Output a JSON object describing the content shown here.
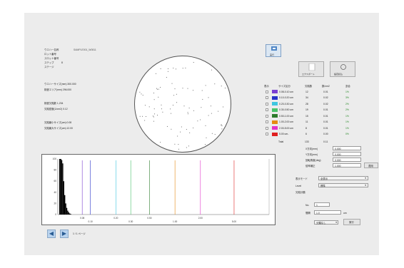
{
  "wafer_info": {
    "label_1": "ウエハー名称",
    "value_1": "SAMPLE001_W0811",
    "label_2": "ロット番号",
    "label_3": "スロット番号",
    "label_4": "ステップ",
    "value_4": "8",
    "label_5": "ステージ",
    "line_6": "ウエハーサイズ(mm) 300.000",
    "line_7": "検査エリア(mm) 296.000",
    "line_8": "検査欠陥数 1,234",
    "line_9": "欠陥密度(1/cm2) 0.12",
    "line_10": "欠陥最小サイズ(um) 0.08",
    "line_11": "欠陥最大サイズ(um) 12.00"
  },
  "toolbar": {
    "run_label": "実行",
    "export_label": "エクスポート",
    "settings_label": "設定読込"
  },
  "size_table": {
    "headers": [
      "表示",
      "サイズ区分",
      "欠陥数",
      "数/cm2",
      "割合"
    ],
    "rows": [
      {
        "range": "0.08-0.10 um",
        "count": "12",
        "density": "0.01",
        "pct": "1%",
        "color": "#7a3fd1"
      },
      {
        "range": "0.10-0.20 um",
        "count": "34",
        "density": "0.02",
        "pct": "3%",
        "color": "#2832c8"
      },
      {
        "range": "0.20-0.30 um",
        "count": "28",
        "density": "0.02",
        "pct": "2%",
        "color": "#3ec6e0"
      },
      {
        "range": "0.30-0.50 um",
        "count": "19",
        "density": "0.01",
        "pct": "2%",
        "color": "#49c36a"
      },
      {
        "range": "0.50-1.00 um",
        "count": "15",
        "density": "0.01",
        "pct": "1%",
        "color": "#2c7a2c"
      },
      {
        "range": "1.00-2.00 um",
        "count": "11",
        "density": "0.01",
        "pct": "1%",
        "color": "#e58a12"
      },
      {
        "range": "2.00-5.00 um",
        "count": "8",
        "density": "0.01",
        "pct": "1%",
        "color": "#e233c9"
      },
      {
        "range": "5.00 um-",
        "count": "6",
        "density": "0.00",
        "pct": "0%",
        "color": "#e02020"
      }
    ],
    "total_label": "Total",
    "total_count": "133",
    "total_density": "0.11"
  },
  "params": {
    "label_a": "X方向(mm)",
    "value_a": "0.000",
    "label_b": "Y方向(mm)",
    "value_b": "0.000",
    "label_c": "回転角度(deg)",
    "value_c": "0.000",
    "label_d": "倍率補正",
    "value_d": "1.000",
    "apply_label": "適用",
    "label_e": "表示モード",
    "value_e": "全表示",
    "label_f": "Level",
    "value_f": "標準",
    "label_g": "欠陥分類",
    "label_h": "No.",
    "value_h": "1",
    "label_i": "間隔",
    "value_i": "1.0",
    "unit_i": "um",
    "value_j": "分類なし",
    "exec_label": "実行"
  },
  "chart_data": {
    "type": "bar",
    "title": "",
    "xlabel": "",
    "ylabel": "",
    "ylim": [
      0,
      100
    ],
    "y_ticks": [
      "100",
      "80",
      "60",
      "40",
      "20",
      "0"
    ],
    "x_tick_labels": [
      "0.08",
      "0.10",
      "0.20",
      "0.30",
      "0.50",
      "1.00",
      "2.00",
      "5.00"
    ],
    "histogram": [
      100,
      100,
      98,
      92,
      60,
      35,
      20,
      12,
      7,
      4,
      2,
      1
    ],
    "threshold_lines": [
      {
        "x": 0.08,
        "color": "#7a3fd1"
      },
      {
        "x": 0.1,
        "color": "#2832c8"
      },
      {
        "x": 0.2,
        "color": "#3ec6e0"
      },
      {
        "x": 0.3,
        "color": "#49c36a"
      },
      {
        "x": 0.5,
        "color": "#2c7a2c"
      },
      {
        "x": 1.0,
        "color": "#e58a12"
      },
      {
        "x": 2.0,
        "color": "#e233c9"
      },
      {
        "x": 5.0,
        "color": "#e02020"
      }
    ],
    "grid": false
  },
  "pager": {
    "text": "1 / 1 ページ"
  }
}
